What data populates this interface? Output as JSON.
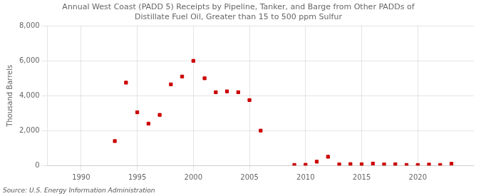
{
  "chart_data": {
    "type": "scatter",
    "title": "Annual West Coast (PADD 5) Receipts by Pipeline, Tanker, and Barge from Other PADDs of\nDistillate Fuel Oil, Greater than 15 to 500 ppm Sulfur",
    "ylabel": "Thousand Barrels",
    "source": "Source: U.S. Energy Information Administration",
    "color": "#cc0000",
    "marker": "square",
    "x": [
      1993,
      1994,
      1995,
      1996,
      1997,
      1998,
      1999,
      2000,
      2001,
      2002,
      2003,
      2004,
      2005,
      2006,
      2009,
      2010,
      2011,
      2012,
      2013,
      2014,
      2015,
      2016,
      2017,
      2018,
      2019,
      2020,
      2021,
      2022,
      2023
    ],
    "values": [
      1400,
      4750,
      3050,
      2400,
      2900,
      4650,
      5100,
      6000,
      5000,
      4200,
      4250,
      4200,
      3750,
      2000,
      30,
      40,
      220,
      500,
      60,
      80,
      70,
      110,
      60,
      70,
      30,
      30,
      50,
      30,
      100
    ],
    "xlim": [
      1987,
      2025
    ],
    "xticks": [
      1990,
      1995,
      2000,
      2005,
      2010,
      2015,
      2020
    ],
    "ylim": [
      0,
      8000
    ],
    "yticks": [
      0,
      {
        "value": 2000,
        "label": "2,000"
      },
      {
        "value": 4000,
        "label": "4,000"
      },
      {
        "value": 6000,
        "label": "6,000"
      },
      {
        "value": 8000,
        "label": "8,000"
      }
    ],
    "grid": true
  }
}
